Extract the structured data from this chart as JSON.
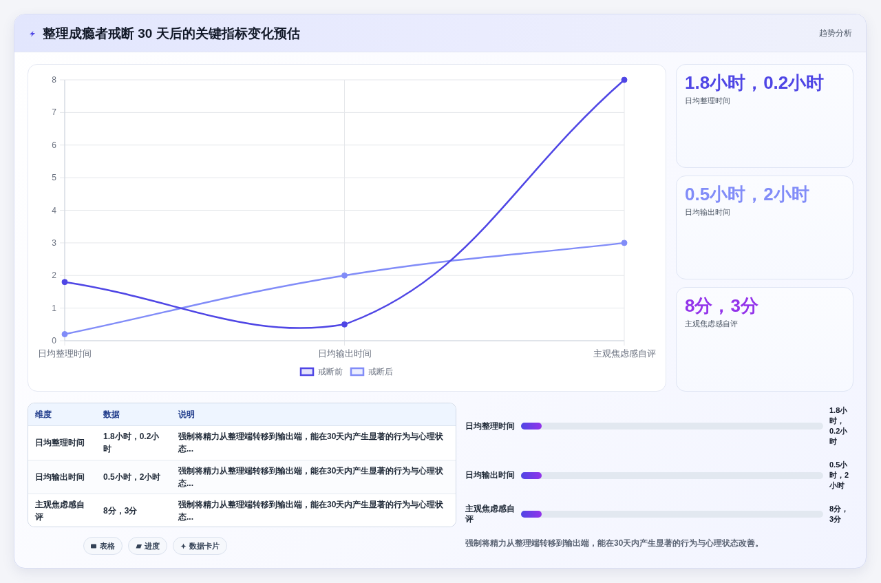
{
  "chart_data": [
    {
      "type": "other",
      "title": "整理成瘾者戒断 30 天后的关键指标变化预估",
      "subtitle": "趋势分析"
    },
    {
      "type": "line",
      "categories": [
        "日均整理时间",
        "日均输出时间",
        "主观焦虑感自评"
      ],
      "series": [
        {
          "name": "戒断前",
          "color": "#4f46e5",
          "values": [
            1.8,
            0.5,
            8
          ]
        },
        {
          "name": "戒断后",
          "color": "#818cf8",
          "values": [
            0.2,
            2,
            3
          ]
        }
      ],
      "ylim": [
        0,
        8
      ],
      "yticks": [
        0,
        1,
        2,
        3,
        4,
        5,
        6,
        7,
        8
      ],
      "grid": true,
      "legend": "bottom",
      "marker": "circle",
      "line_style": "solid"
    },
    {
      "type": "other",
      "categories": [
        "日均整理时间",
        "日均输出时间",
        "主观焦虑感自评"
      ],
      "annotations": [
        "1.8小时，0.2小时",
        "0.5小时，2小时",
        "8分，3分"
      ]
    },
    {
      "type": "other",
      "categories": [
        "维度",
        "数据",
        "说明"
      ],
      "cell_labels": [
        [
          "日均整理时间",
          "1.8小时，0.2小时",
          "强制将精力从整理端转移到输出端，能在30天内产生显著的行为与心理状态..."
        ],
        [
          "日均输出时间",
          "0.5小时，2小时",
          "强制将精力从整理端转移到输出端，能在30天内产生显著的行为与心理状态..."
        ],
        [
          "主观焦虑感自评",
          "8分，3分",
          "强制将精力从整理端转移到输出端，能在30天内产生显著的行为与心理状态..."
        ]
      ]
    },
    {
      "type": "other",
      "categories": [
        "日均整理时间",
        "日均输出时间",
        "主观焦虑感自评"
      ],
      "value_labels": [
        "1.8小时，0.2小时",
        "0.5小时，2小时",
        "8分，3分"
      ],
      "annotations": [
        "强制将精力从整理端转移到输出端，能在30天内产生显著的行为与心理状态改善。"
      ]
    },
    {
      "type": "other",
      "annotations": [
        "表格",
        "进度",
        "数据卡片"
      ]
    }
  ]
}
